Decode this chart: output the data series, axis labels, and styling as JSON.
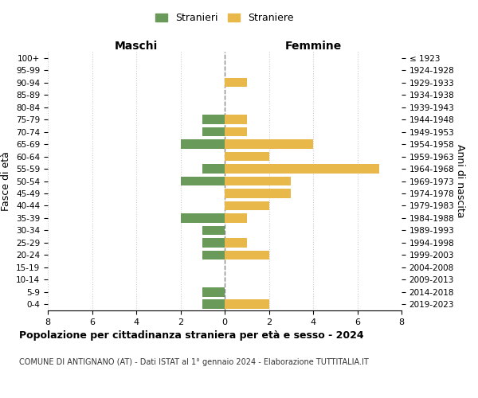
{
  "age_groups": [
    "100+",
    "95-99",
    "90-94",
    "85-89",
    "80-84",
    "75-79",
    "70-74",
    "65-69",
    "60-64",
    "55-59",
    "50-54",
    "45-49",
    "40-44",
    "35-39",
    "30-34",
    "25-29",
    "20-24",
    "15-19",
    "10-14",
    "5-9",
    "0-4"
  ],
  "birth_years": [
    "≤ 1923",
    "1924-1928",
    "1929-1933",
    "1934-1938",
    "1939-1943",
    "1944-1948",
    "1949-1953",
    "1954-1958",
    "1959-1963",
    "1964-1968",
    "1969-1973",
    "1974-1978",
    "1979-1983",
    "1984-1988",
    "1989-1993",
    "1994-1998",
    "1999-2003",
    "2004-2008",
    "2009-2013",
    "2014-2018",
    "2019-2023"
  ],
  "maschi": [
    0,
    0,
    0,
    0,
    0,
    1,
    1,
    2,
    0,
    1,
    2,
    0,
    0,
    2,
    1,
    1,
    1,
    0,
    0,
    1,
    1
  ],
  "femmine": [
    0,
    0,
    1,
    0,
    0,
    1,
    1,
    4,
    2,
    7,
    3,
    3,
    2,
    1,
    0,
    1,
    2,
    0,
    0,
    0,
    2
  ],
  "maschi_color": "#6a9a5a",
  "femmine_color": "#e8b84b",
  "title": "Popolazione per cittadinanza straniera per età e sesso - 2024",
  "subtitle": "COMUNE DI ANTIGNANO (AT) - Dati ISTAT al 1° gennaio 2024 - Elaborazione TUTTITALIA.IT",
  "xlabel_left": "Maschi",
  "xlabel_right": "Femmine",
  "ylabel_left": "Fasce di età",
  "ylabel_right": "Anni di nascita",
  "legend_maschi": "Stranieri",
  "legend_femmine": "Straniere",
  "xlim": 8,
  "bg_color": "#ffffff",
  "grid_color": "#cccccc",
  "bar_height": 0.75
}
